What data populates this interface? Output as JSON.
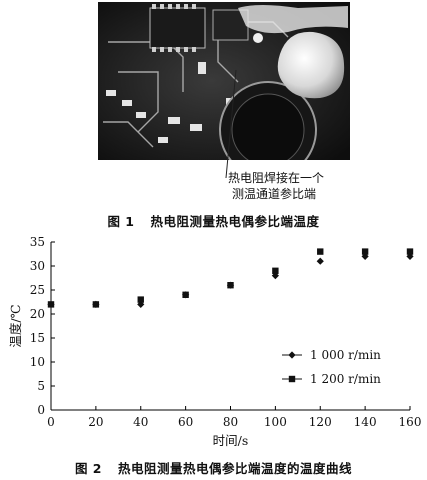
{
  "figure1": {
    "callout_line1": "热电阻焊接在一个",
    "callout_line2": "测温通道参比端",
    "caption_num": "图 1",
    "caption_text": "热电阻测量热电偶参比端温度"
  },
  "figure2": {
    "caption_num": "图 2",
    "caption_text": "热电阻测量热电偶参比端温度的温度曲线"
  },
  "chart_data": {
    "type": "scatter",
    "xlabel": "时间/s",
    "ylabel": "温度/℃",
    "xlim": [
      0,
      160
    ],
    "ylim": [
      0,
      35
    ],
    "x_ticks": [
      "0",
      "20",
      "40",
      "60",
      "80",
      "100",
      "120",
      "140",
      "160"
    ],
    "y_ticks": [
      "0",
      "5",
      "10",
      "15",
      "20",
      "25",
      "30",
      "35"
    ],
    "grid": false,
    "legend_position": "right",
    "x": [
      0,
      20,
      40,
      60,
      80,
      100,
      120,
      140,
      160
    ],
    "series": [
      {
        "name": "1 000 r/min",
        "marker": "diamond",
        "values": [
          22,
          22,
          22,
          24,
          26,
          28,
          31,
          32,
          32
        ]
      },
      {
        "name": "1 200 r/min",
        "marker": "square",
        "values": [
          22,
          22,
          23,
          24,
          26,
          29,
          33,
          33,
          33
        ]
      }
    ]
  }
}
